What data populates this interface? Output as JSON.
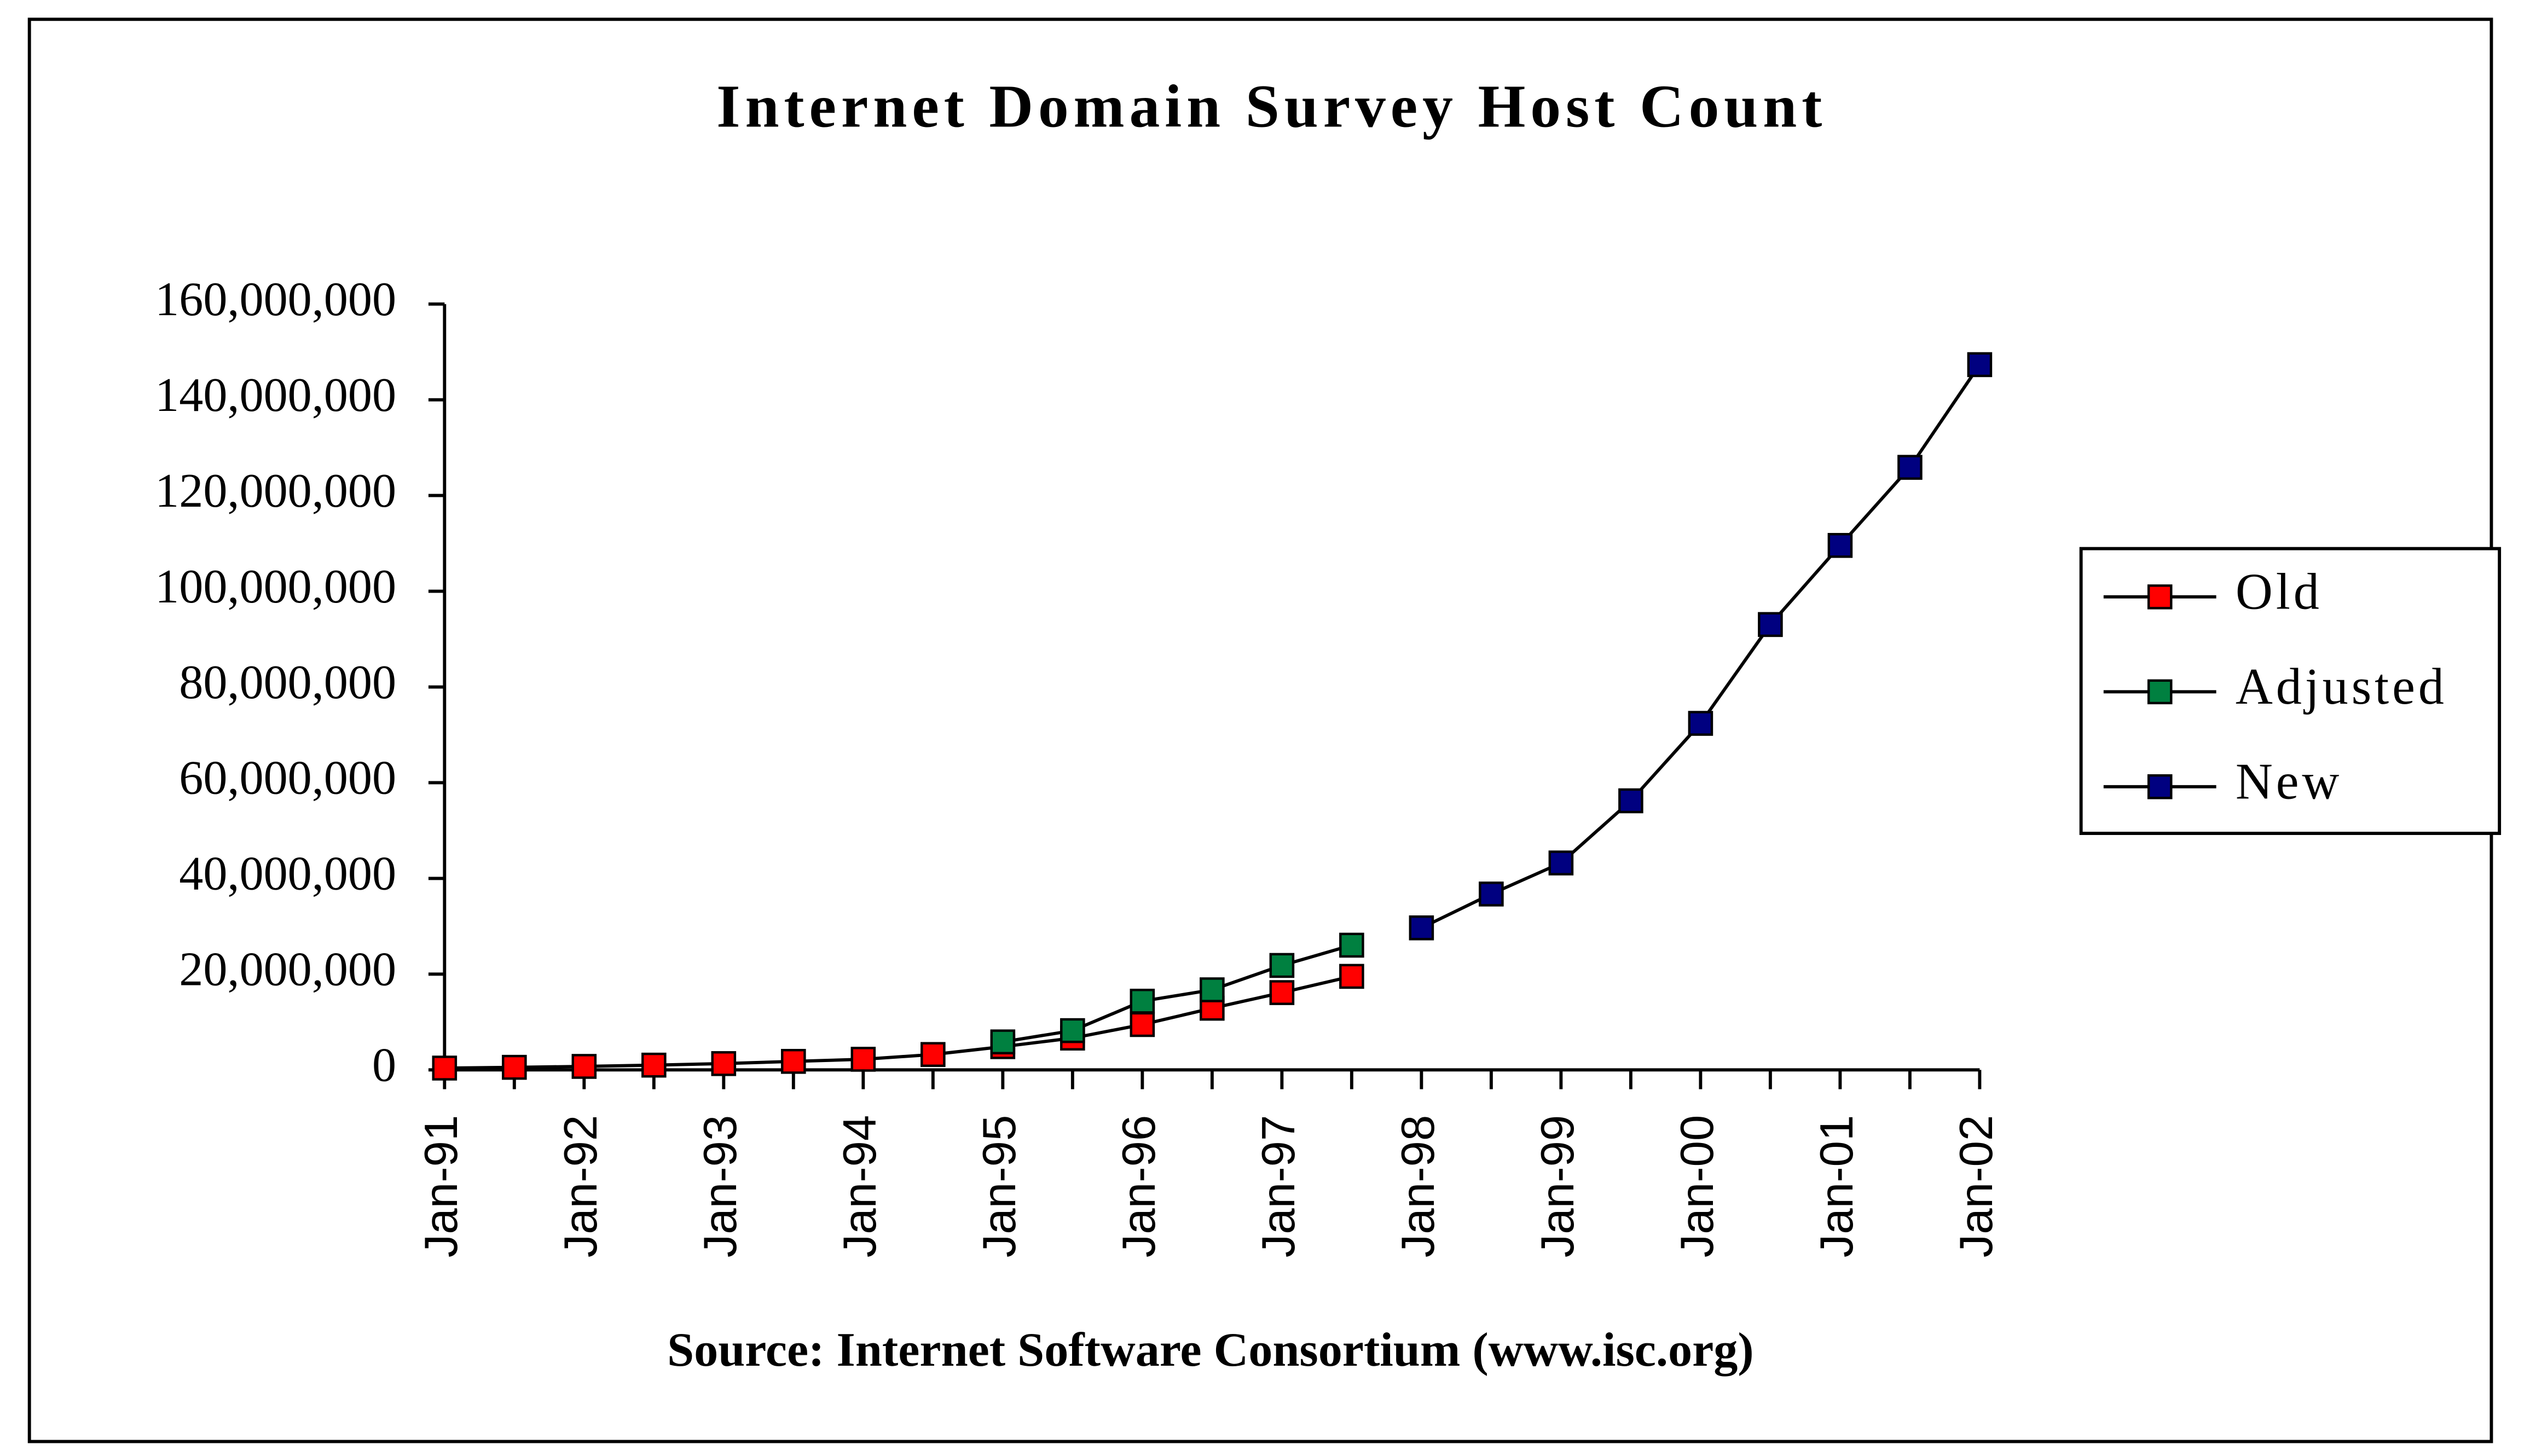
{
  "chart_data": {
    "type": "line",
    "title": "Internet Domain Survey Host Count",
    "x_label": "Source: Internet Software Consortium (www.isc.org)",
    "categories": [
      "Jan-91",
      null,
      "Jan-92",
      null,
      "Jan-93",
      null,
      "Jan-94",
      null,
      "Jan-95",
      null,
      "Jan-96",
      null,
      "Jan-97",
      null,
      "Jan-98",
      null,
      "Jan-99",
      null,
      "Jan-00",
      null,
      "Jan-01",
      null,
      "Jan-02"
    ],
    "series": [
      {
        "name": "Old",
        "color": "#ff0000",
        "values": [
          376000,
          535000,
          727000,
          992000,
          1313000,
          1776000,
          2217000,
          3212000,
          4852000,
          6642000,
          9472000,
          12881000,
          16146000,
          19540000,
          null,
          null,
          null,
          null,
          null,
          null,
          null,
          null,
          null
        ]
      },
      {
        "name": "Adjusted",
        "color": "#008040",
        "values": [
          null,
          null,
          null,
          null,
          null,
          null,
          null,
          null,
          5846000,
          8200000,
          14352000,
          16729000,
          21819000,
          26053000,
          null,
          null,
          null,
          null,
          null,
          null,
          null,
          null,
          null
        ]
      },
      {
        "name": "New",
        "color": "#000080",
        "values": [
          null,
          null,
          null,
          null,
          null,
          null,
          null,
          null,
          null,
          null,
          null,
          null,
          null,
          null,
          29670000,
          36739000,
          43230000,
          56218000,
          72398000,
          93047000,
          109574000,
          125888000,
          147345000
        ]
      }
    ],
    "ylim": [
      0,
      160000000
    ],
    "yticks": [
      0,
      {
        "value": 20000000,
        "label": "20,000,000"
      },
      {
        "value": 40000000,
        "label": "40,000,000"
      },
      {
        "value": 60000000,
        "label": "60,000,000"
      },
      {
        "value": 80000000,
        "label": "80,000,000"
      },
      {
        "value": 100000000,
        "label": "100,000,000"
      },
      {
        "value": 120000000,
        "label": "120,000,000"
      },
      {
        "value": 140000000,
        "label": "140,000,000"
      },
      {
        "value": 160000000,
        "label": "160,000,000"
      }
    ],
    "legend": "right"
  }
}
